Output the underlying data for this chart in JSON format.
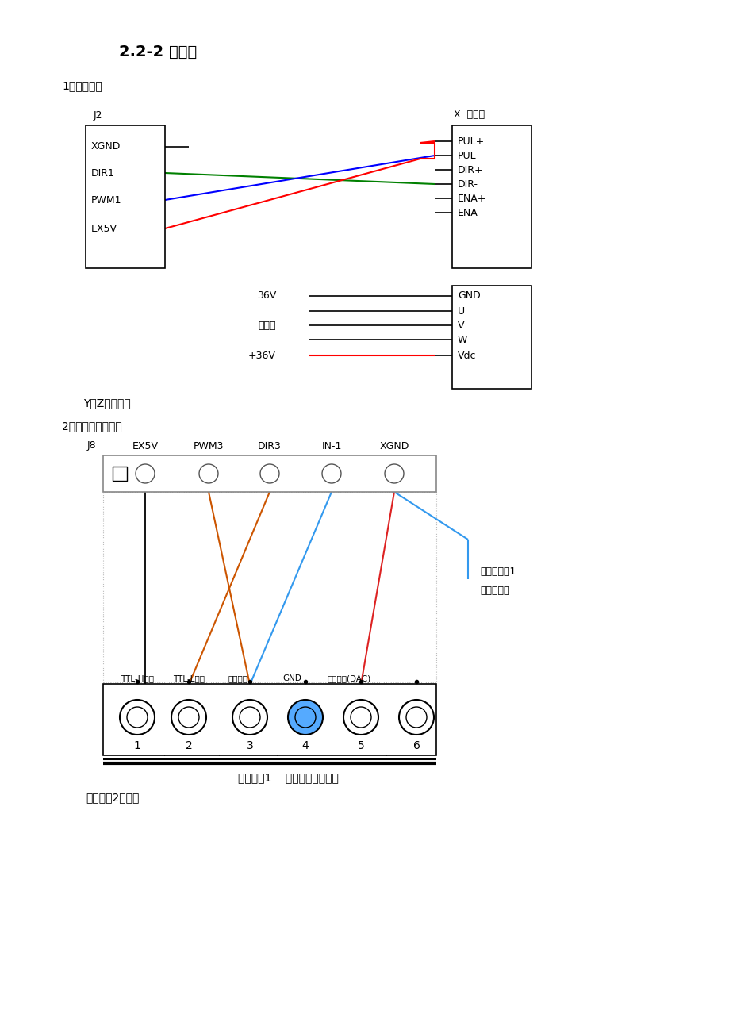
{
  "title": "2.2-2 接线图",
  "bg_color": "#ffffff",
  "section1_label": "1、轴接线图",
  "section2_label": "2、激光电源接线图",
  "j2_label": "J2",
  "x_drive_label": "X  轴驱动",
  "j2_pins": [
    "XGND",
    "DIR1",
    "PWM1",
    "EX5V"
  ],
  "x_drive_pins_upper": [
    "PUL+",
    "PUL-",
    "DIR+",
    "DIR-",
    "ENA+",
    "ENA-"
  ],
  "x_drive_pins_lower": [
    "GND",
    "U",
    "V",
    "W",
    "Vdc"
  ],
  "label_36v": "36V",
  "label_jiaodianji": "接电机",
  "label_plus36v": "+36V",
  "note1": "Y、Z轴类似。",
  "j8_label": "J8",
  "j8_pins": [
    "EX5V",
    "PWM3",
    "DIR3",
    "IN-1",
    "XGND"
  ],
  "laser_lower_pins": [
    "TTL-H输入",
    "TTL-L输入",
    "保护接口",
    "GND",
    "控制输入(DAC)"
  ],
  "laser_lower_nums": [
    "1",
    "2",
    "3",
    "4",
    "5",
    "6"
  ],
  "note2": "激光电源1    （成都激光电源）",
  "note3": "激光电源2类似。",
  "water_note1": "水保护接口1",
  "water_note2": "低电平有效"
}
